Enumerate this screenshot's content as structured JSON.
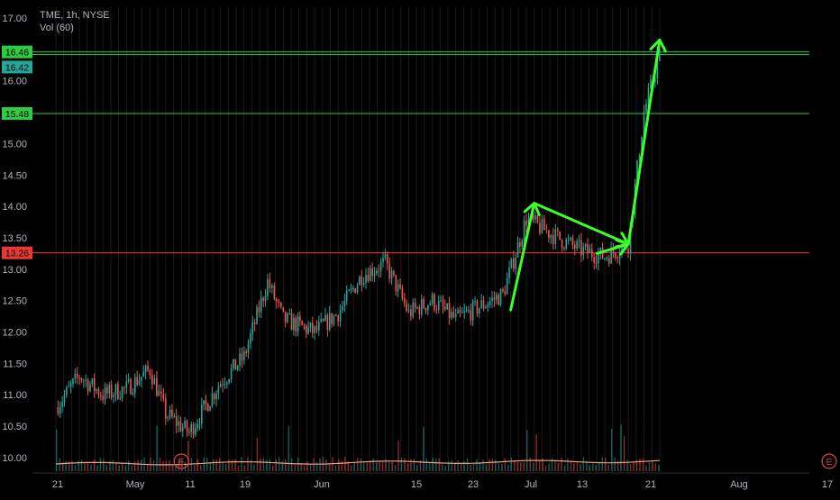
{
  "header": {
    "symbol_line": "TME, 1h, NYSE",
    "volume_label": "Vol (60)"
  },
  "colors": {
    "background": "#000000",
    "candle_up": "#26a69a",
    "candle_down": "#ef5350",
    "volume_ma": "#f0a07a",
    "support_line": "#2ecc40",
    "resistance_line": "#ff3333",
    "drawing_arrow": "#3cff2a",
    "earnings_marker": "#e04040",
    "axis_text": "#b2b5be"
  },
  "chart_data": {
    "type": "candlestick",
    "title": "TME, 1h, NYSE",
    "ylim": [
      9.75,
      17.0
    ],
    "y_ticks": [
      "17.00",
      "16.50",
      "16.00",
      "15.50",
      "15.00",
      "14.50",
      "14.00",
      "13.50",
      "13.00",
      "12.50",
      "12.00",
      "11.50",
      "11.00",
      "10.50",
      "10.00"
    ],
    "x_ticks": [
      "21",
      "May",
      "11",
      "19",
      "Jun",
      "15",
      "23",
      "Jul",
      "13",
      "21",
      "Aug",
      "17"
    ],
    "price_path": [
      {
        "x": "Apr 21",
        "y": 10.8
      },
      {
        "x": "Apr 24",
        "y": 11.3
      },
      {
        "x": "Apr 27",
        "y": 11.0
      },
      {
        "x": "Apr 30",
        "y": 11.1
      },
      {
        "x": "May 3",
        "y": 11.4
      },
      {
        "x": "May 5",
        "y": 10.7
      },
      {
        "x": "May 8",
        "y": 10.4
      },
      {
        "x": "May 12",
        "y": 11.2
      },
      {
        "x": "May 15",
        "y": 11.6
      },
      {
        "x": "May 18",
        "y": 12.8
      },
      {
        "x": "May 20",
        "y": 12.2
      },
      {
        "x": "May 24",
        "y": 12.0
      },
      {
        "x": "May 27",
        "y": 12.3
      },
      {
        "x": "May 30",
        "y": 12.9
      },
      {
        "x": "Jun 2",
        "y": 13.1
      },
      {
        "x": "Jun 5",
        "y": 12.3
      },
      {
        "x": "Jun 8",
        "y": 12.5
      },
      {
        "x": "Jun 11",
        "y": 12.2
      },
      {
        "x": "Jun 14",
        "y": 12.4
      },
      {
        "x": "Jun 17",
        "y": 12.6
      },
      {
        "x": "Jun 20",
        "y": 13.8
      },
      {
        "x": "Jun 24",
        "y": 13.5
      },
      {
        "x": "Jun 27",
        "y": 13.3
      },
      {
        "x": "Jun 30",
        "y": 13.2
      },
      {
        "x": "Jul 3",
        "y": 13.4
      },
      {
        "x": "Jul 5",
        "y": 15.5
      },
      {
        "x": "Jul 7",
        "y": 16.4
      }
    ],
    "horizontal_levels": [
      {
        "label": "16.46",
        "value": 16.46,
        "color": "#2ecc40",
        "tag_color": "#2ecc40"
      },
      {
        "label": "16.42",
        "value": 16.42,
        "color": "#2ecc40",
        "tag_color": "#26a69a"
      },
      {
        "label": "15.48",
        "value": 15.48,
        "color": "#2ecc40",
        "tag_color": "#2ecc40"
      },
      {
        "label": "13.26",
        "value": 13.26,
        "color": "#ff3333",
        "tag_color": "#e53935"
      }
    ],
    "drawn_arrows": [
      {
        "from": {
          "x": "Jun 18",
          "y": 12.35
        },
        "to": {
          "x": "Jun 21",
          "y": 14.05
        }
      },
      {
        "from": {
          "x": "Jun 21",
          "y": 14.05
        },
        "to": {
          "x": "Jul 3",
          "y": 13.4
        }
      },
      {
        "from": {
          "x": "Jun 29",
          "y": 13.25
        },
        "to": {
          "x": "Jul 3",
          "y": 13.4
        }
      },
      {
        "from": {
          "x": "Jul 3",
          "y": 13.4
        },
        "to": {
          "x": "Jul 7",
          "y": 16.65
        }
      }
    ],
    "earnings_markers": [
      "E",
      "E"
    ],
    "grid": "vertical"
  }
}
